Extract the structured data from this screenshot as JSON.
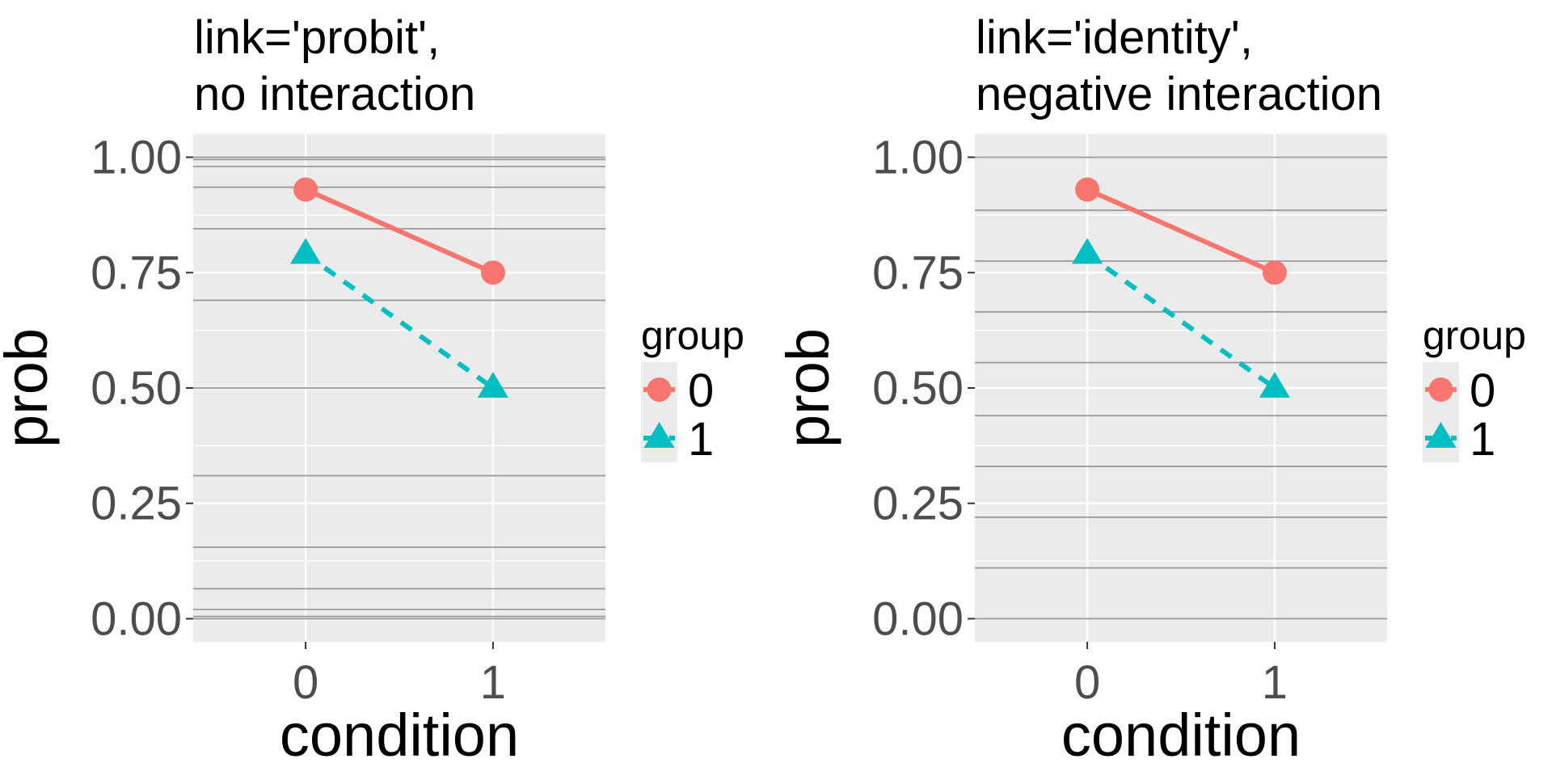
{
  "chart_data": [
    {
      "type": "line",
      "title_lines": [
        "link='probit',",
        " no interaction"
      ],
      "xlabel": "condition",
      "ylabel": "prob",
      "categories": [
        "0",
        "1"
      ],
      "xlim": [
        -0.6,
        1.6
      ],
      "ylim": [
        -0.05,
        1.05
      ],
      "yticks": [
        "0.00",
        "0.25",
        "0.50",
        "0.75",
        "1.00"
      ],
      "grid": true,
      "reference_lines": [
        0.0,
        0.005,
        0.02,
        0.065,
        0.155,
        0.31,
        0.5,
        0.69,
        0.845,
        0.935,
        0.98,
        0.995,
        1.0
      ],
      "series": [
        {
          "name": "0",
          "values": [
            0.93,
            0.75
          ],
          "color": "#F8766D",
          "marker": "circle",
          "linestyle": "solid"
        },
        {
          "name": "1",
          "values": [
            0.79,
            0.5
          ],
          "color": "#00BFC4",
          "marker": "triangle",
          "linestyle": "dashed"
        }
      ],
      "legend": {
        "title": "group",
        "labels": [
          "0",
          "1"
        ],
        "position": "right"
      }
    },
    {
      "type": "line",
      "title_lines": [
        "link='identity',",
        " negative interaction"
      ],
      "xlabel": "condition",
      "ylabel": "prob",
      "categories": [
        "0",
        "1"
      ],
      "xlim": [
        -0.6,
        1.6
      ],
      "ylim": [
        -0.05,
        1.05
      ],
      "yticks": [
        "0.00",
        "0.25",
        "0.50",
        "0.75",
        "1.00"
      ],
      "grid": true,
      "reference_lines": [
        0.0,
        0.11,
        0.22,
        0.33,
        0.44,
        0.555,
        0.665,
        0.775,
        0.885,
        1.0
      ],
      "series": [
        {
          "name": "0",
          "values": [
            0.93,
            0.75
          ],
          "color": "#F8766D",
          "marker": "circle",
          "linestyle": "solid"
        },
        {
          "name": "1",
          "values": [
            0.79,
            0.5
          ],
          "color": "#00BFC4",
          "marker": "triangle",
          "linestyle": "dashed"
        }
      ],
      "legend": {
        "title": "group",
        "labels": [
          "0",
          "1"
        ],
        "position": "right"
      }
    }
  ]
}
